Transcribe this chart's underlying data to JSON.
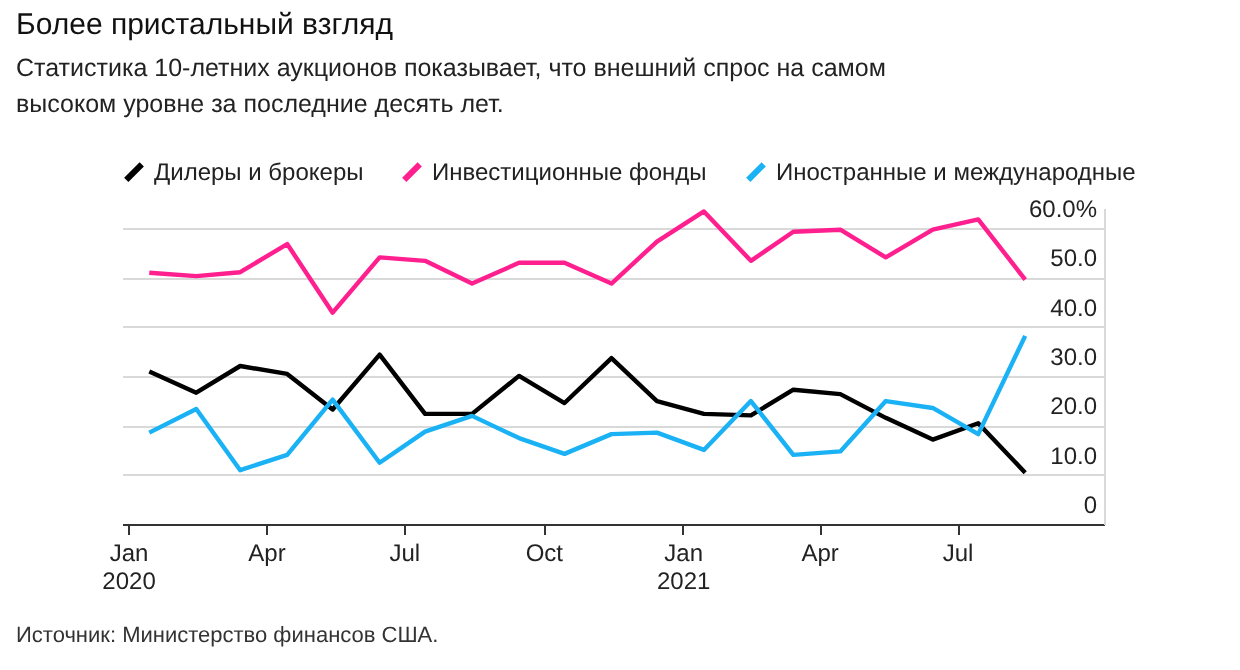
{
  "chart_data": {
    "type": "line",
    "title": "Более пристальный взгляд",
    "subtitle": "Статистика 10-летних аукционов показывает, что внешний спрос на самом высоком уровне за последние десять лет.",
    "x": [
      "2020-01-15",
      "2020-02-15",
      "2020-03-15",
      "2020-04-15",
      "2020-05-15",
      "2020-06-15",
      "2020-07-15",
      "2020-08-15",
      "2020-09-15",
      "2020-10-15",
      "2020-11-15",
      "2020-12-15",
      "2021-01-15",
      "2021-02-15",
      "2021-03-15",
      "2021-04-15",
      "2021-05-15",
      "2021-06-15",
      "2021-07-15",
      "2021-08-15"
    ],
    "series": [
      {
        "name": "Дилеры и брокеры",
        "color": "#000000",
        "values": [
          30.9,
          26.6,
          32.0,
          30.4,
          23.2,
          34.3,
          22.3,
          22.3,
          30.0,
          24.5,
          33.6,
          24.9,
          22.3,
          22.0,
          27.2,
          26.3,
          21.5,
          17.1,
          20.4,
          10.4
        ]
      },
      {
        "name": "Инвестиционные фонды",
        "color": "#ff1f8f",
        "values": [
          50.9,
          50.2,
          51.0,
          56.7,
          42.8,
          54.0,
          53.3,
          48.7,
          52.9,
          52.9,
          48.7,
          57.2,
          63.3,
          53.3,
          59.2,
          59.6,
          54.0,
          59.6,
          61.7,
          49.5
        ]
      },
      {
        "name": "Иностранные и международные",
        "color": "#1ab2f5",
        "values": [
          18.5,
          23.3,
          10.9,
          14.0,
          25.2,
          12.4,
          18.7,
          21.9,
          17.4,
          14.2,
          18.2,
          18.5,
          15.0,
          24.9,
          14.0,
          14.7,
          24.9,
          23.5,
          18.2,
          38.1
        ]
      }
    ],
    "xlim": [
      "2019-12-28",
      "2021-10-06"
    ],
    "xticks": [
      {
        "value": "2020-01-01",
        "label": "Jan 2020"
      },
      {
        "value": "2020-04-01",
        "label": "Apr"
      },
      {
        "value": "2020-07-01",
        "label": "Jul"
      },
      {
        "value": "2020-10-01",
        "label": "Oct"
      },
      {
        "value": "2021-01-01",
        "label": "Jan 2021"
      },
      {
        "value": "2021-04-01",
        "label": "Apr"
      },
      {
        "value": "2021-07-01",
        "label": "Jul"
      }
    ],
    "ylim": [
      0,
      64
    ],
    "yticks": [
      {
        "value": 0,
        "label": "0"
      },
      {
        "value": 10,
        "label": "10.0"
      },
      {
        "value": 20,
        "label": "20.0"
      },
      {
        "value": 30,
        "label": "30.0"
      },
      {
        "value": 40,
        "label": "40.0"
      },
      {
        "value": 50,
        "label": "50.0"
      },
      {
        "value": 60,
        "label": "60.0%"
      }
    ],
    "grid": "y",
    "legend": "top",
    "marker": "none",
    "line_style": "solid",
    "annotations": [
      "Источник: Министерство финансов США."
    ]
  }
}
